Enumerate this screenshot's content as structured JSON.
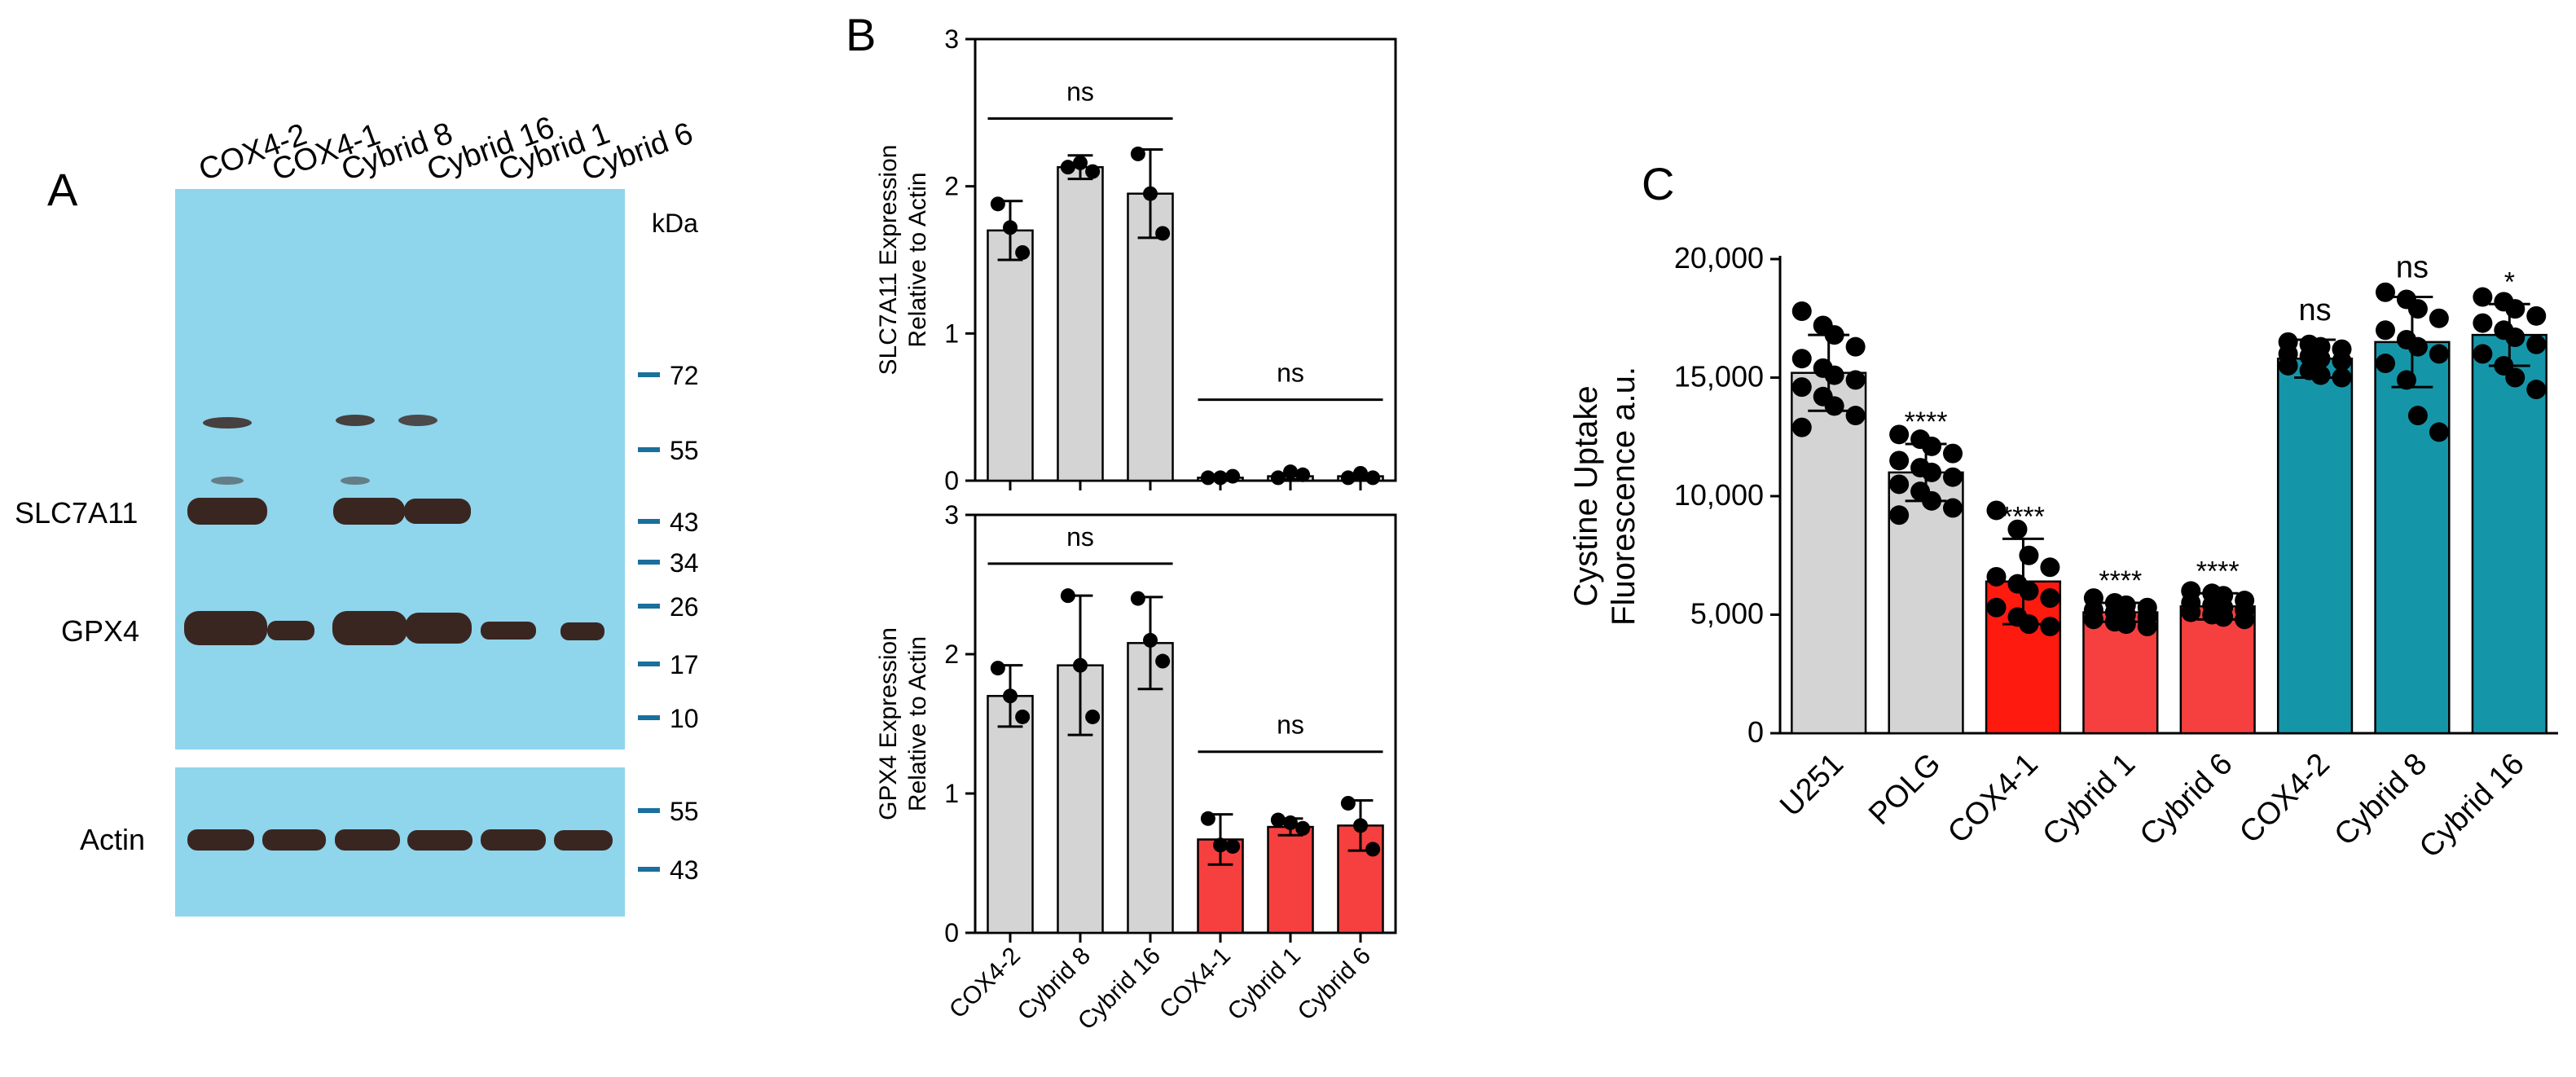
{
  "panels": {
    "a": "A",
    "b": "B",
    "c": "C"
  },
  "blot": {
    "lanes": [
      "COX4-2",
      "COX4-1",
      "Cybrid 8",
      "Cybrid 16",
      "Cybrid 1",
      "Cybrid 6"
    ],
    "kda_title": "kDa",
    "markers_main": [
      "72",
      "55",
      "43",
      "34",
      "26",
      "17",
      "10"
    ],
    "markers_actin": [
      "55",
      "43"
    ],
    "row_labels": {
      "slc": "SLC7A11",
      "gpx": "GPX4",
      "actin": "Actin"
    },
    "colors": {
      "film": "#8fd5ec",
      "band": "#3a2620",
      "marker": "#1a6f9c"
    }
  },
  "chart_data": [
    {
      "type": "bar",
      "id": "B-top",
      "ylabel": [
        "SLC7A11 Expression",
        "Relative to Actin"
      ],
      "categories": [
        "COX4-2",
        "Cybrid 8",
        "Cybrid 16",
        "COX4-1",
        "Cybrid 1",
        "Cybrid 6"
      ],
      "values": [
        1.7,
        2.13,
        1.95,
        0.02,
        0.03,
        0.03
      ],
      "errors": [
        0.2,
        0.08,
        0.3,
        0.01,
        0.02,
        0.02
      ],
      "points": [
        [
          1.88,
          1.72,
          1.55
        ],
        [
          2.13,
          2.16,
          2.1
        ],
        [
          2.22,
          1.95,
          1.68
        ],
        [
          0.02,
          0.02,
          0.03
        ],
        [
          0.02,
          0.06,
          0.04
        ],
        [
          0.02,
          0.05,
          0.02
        ]
      ],
      "colors": [
        "#d4d4d4",
        "#d4d4d4",
        "#d4d4d4",
        "#d4d4d4",
        "#d4d4d4",
        "#d4d4d4"
      ],
      "ylim": [
        0,
        3
      ],
      "yticks": [
        "0",
        "1",
        "2",
        "3"
      ],
      "annotations": [
        {
          "text": "ns",
          "from": 0,
          "to": 2,
          "y": 2.46
        },
        {
          "text": "ns",
          "from": 3,
          "to": 5,
          "y": 0.55
        }
      ]
    },
    {
      "type": "bar",
      "id": "B-bottom",
      "ylabel": [
        "GPX4 Expression",
        "Relative to Actin"
      ],
      "categories": [
        "COX4-2",
        "Cybrid 8",
        "Cybrid 16",
        "COX4-1",
        "Cybrid 1",
        "Cybrid 6"
      ],
      "values": [
        1.7,
        1.92,
        2.08,
        0.67,
        0.76,
        0.77
      ],
      "errors": [
        0.22,
        0.5,
        0.33,
        0.18,
        0.06,
        0.18
      ],
      "points": [
        [
          1.9,
          1.7,
          1.55
        ],
        [
          2.42,
          1.92,
          1.55
        ],
        [
          2.4,
          2.1,
          1.95
        ],
        [
          0.82,
          0.63,
          0.62
        ],
        [
          0.81,
          0.79,
          0.75
        ],
        [
          0.93,
          0.77,
          0.6
        ]
      ],
      "colors": [
        "#d4d4d4",
        "#d4d4d4",
        "#d4d4d4",
        "#f5403f",
        "#f5403f",
        "#f5403f"
      ],
      "ylim": [
        0,
        3
      ],
      "yticks": [
        "0",
        "1",
        "2",
        "3"
      ],
      "annotations": [
        {
          "text": "ns",
          "from": 0,
          "to": 2,
          "y": 2.65
        },
        {
          "text": "ns",
          "from": 3,
          "to": 5,
          "y": 1.3
        }
      ]
    },
    {
      "type": "bar",
      "id": "C",
      "ylabel": [
        "Cystine Uptake",
        "Fluorescence a.u."
      ],
      "categories": [
        "U251",
        "POLG",
        "COX4-1",
        "Cybrid 1",
        "Cybrid 6",
        "COX4-2",
        "Cybrid 8",
        "Cybrid 16"
      ],
      "values": [
        15200,
        11000,
        6400,
        5100,
        5350,
        15800,
        16500,
        16800
      ],
      "errors": [
        1600,
        1200,
        1800,
        400,
        550,
        800,
        1900,
        1300
      ],
      "points": [
        [
          17800,
          17200,
          16800,
          16300,
          15800,
          15400,
          15100,
          14900,
          14600,
          14200,
          13800,
          13400,
          12900
        ],
        [
          12600,
          12400,
          12100,
          11800,
          11500,
          11200,
          11000,
          10800,
          10500,
          10200,
          9800,
          9500,
          9200
        ],
        [
          9400,
          8600,
          7500,
          7000,
          6600,
          6300,
          6000,
          5700,
          5300,
          4900,
          4600,
          4500
        ],
        [
          5700,
          5500,
          5400,
          5300,
          5200,
          5100,
          5000,
          4900,
          4800,
          4700,
          4600,
          4500
        ],
        [
          6000,
          5900,
          5800,
          5600,
          5500,
          5400,
          5300,
          5200,
          5100,
          5000,
          4900,
          4800
        ],
        [
          16500,
          16400,
          16300,
          16200,
          16000,
          15900,
          15800,
          15700,
          15500,
          15300,
          15100,
          15000
        ],
        [
          18600,
          18300,
          17900,
          17500,
          17000,
          16600,
          16300,
          16000,
          15600,
          14900,
          13400,
          12700
        ],
        [
          18400,
          18200,
          17900,
          17600,
          17300,
          17000,
          16700,
          16400,
          16000,
          15500,
          15000,
          14500
        ]
      ],
      "colors": [
        "#d4d4d4",
        "#d4d4d4",
        "#ff1a10",
        "#f5403f",
        "#f5403f",
        "#1596a8",
        "#1596a8",
        "#1596a8"
      ],
      "ylim": [
        0,
        20000
      ],
      "yticks": [
        "0",
        "5,000",
        "10,000",
        "15,000",
        "20,000"
      ],
      "significance": [
        "",
        "****",
        "****",
        "****",
        "****",
        "ns",
        "ns",
        "*"
      ]
    }
  ]
}
